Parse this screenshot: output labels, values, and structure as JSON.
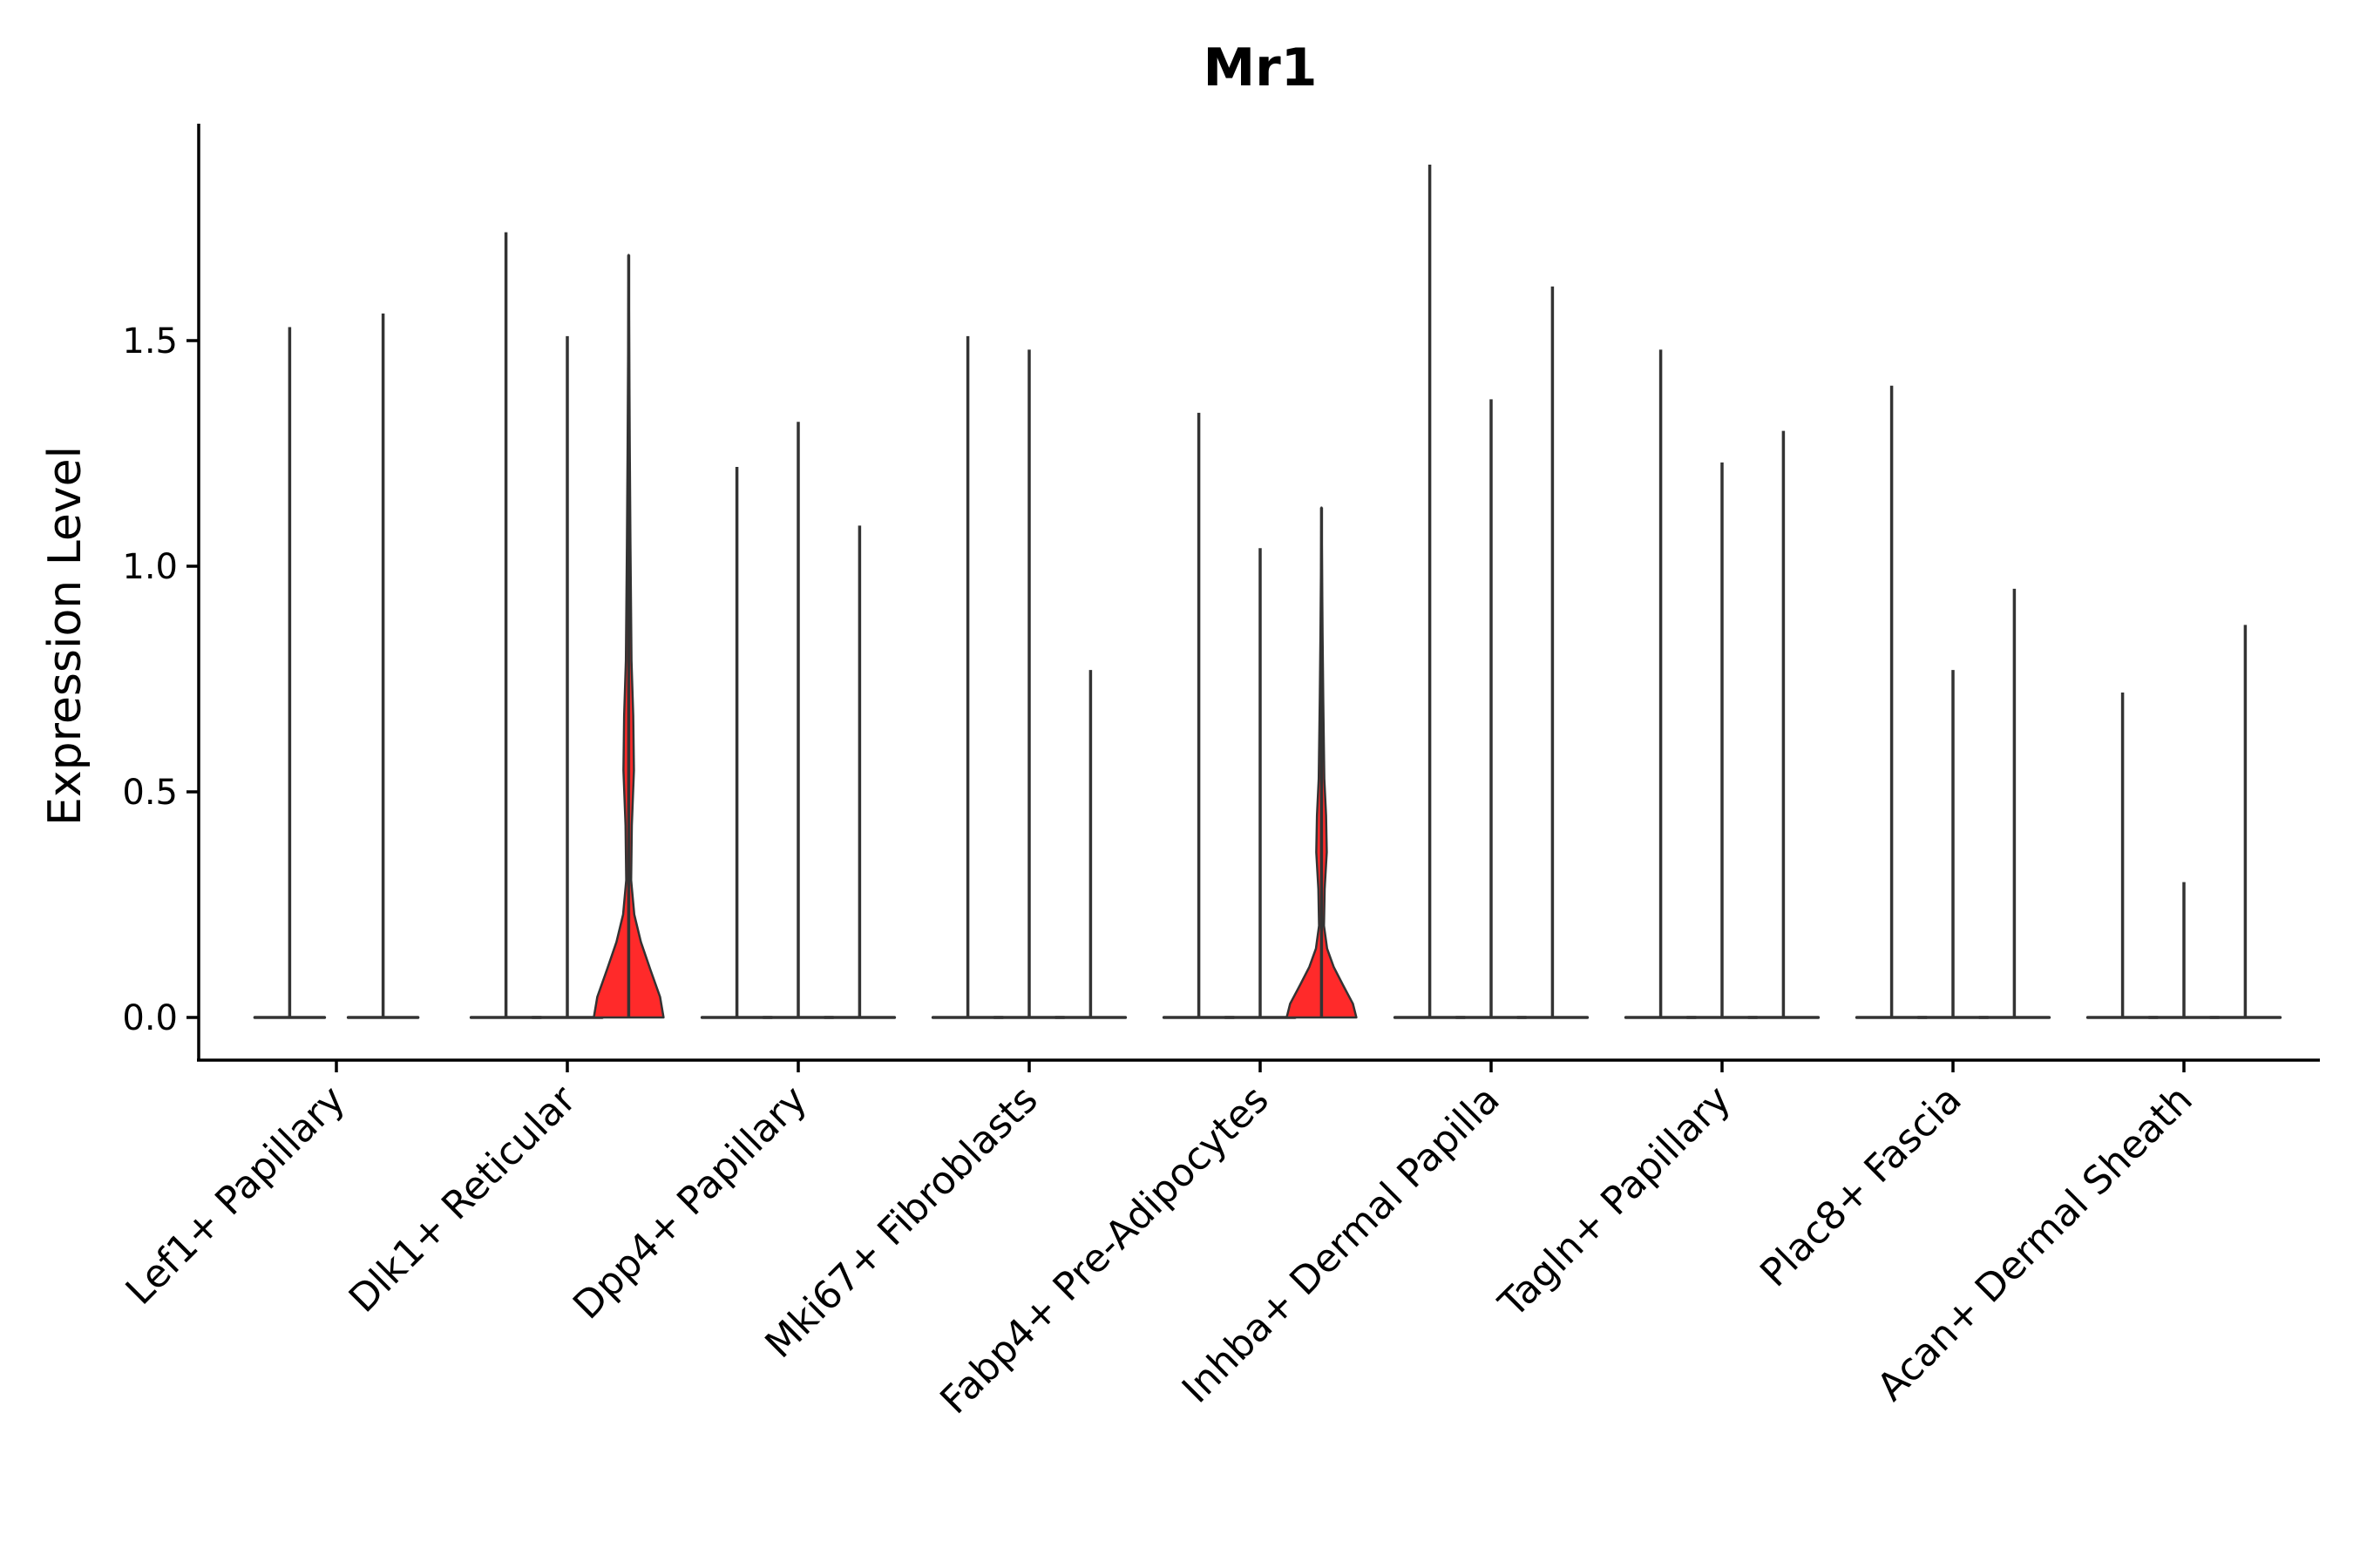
{
  "chart_data": {
    "type": "violin",
    "title": "Mr1",
    "xlabel": "",
    "ylabel": "Expression Level",
    "ylim": [
      -0.095,
      2.0
    ],
    "yticks": [
      0.0,
      0.5,
      1.0,
      1.5
    ],
    "ytick_labels": [
      "0.0",
      "0.5",
      "1.0",
      "1.5"
    ],
    "categories": [
      "Lef1+ Papillary",
      "Dlk1+ Reticular",
      "Dpp4+ Papillary",
      "Mki67+ Fibroblasts",
      "Fabp4+ Pre-Adipocytes",
      "Inhba+ Dermal Papilla",
      "Tagln+ Papillary",
      "Plac8+ Fascia",
      "Acan+ Dermal Sheath"
    ],
    "fill_color": "#ff2a2a",
    "line_color": "#333333",
    "violins": [
      {
        "group": "Lef1+ Papillary",
        "offset": -0.67,
        "max": 1.53,
        "filled": false
      },
      {
        "group": "Lef1+ Papillary",
        "offset": 0.67,
        "max": 1.56,
        "filled": false
      },
      {
        "group": "Dlk1+ Reticular",
        "offset": -0.88,
        "max": 1.74,
        "filled": false
      },
      {
        "group": "Dlk1+ Reticular",
        "offset": 0.0,
        "max": 1.51,
        "filled": false
      },
      {
        "group": "Dlk1+ Reticular",
        "offset": 0.88,
        "max": 1.69,
        "filled": true
      },
      {
        "group": "Dpp4+ Papillary",
        "offset": -0.88,
        "max": 1.22,
        "filled": false
      },
      {
        "group": "Dpp4+ Papillary",
        "offset": 0.0,
        "max": 1.32,
        "filled": false
      },
      {
        "group": "Dpp4+ Papillary",
        "offset": 0.88,
        "max": 1.09,
        "filled": false
      },
      {
        "group": "Mki67+ Fibroblasts",
        "offset": -0.88,
        "max": 1.51,
        "filled": false
      },
      {
        "group": "Mki67+ Fibroblasts",
        "offset": 0.0,
        "max": 1.48,
        "filled": false
      },
      {
        "group": "Mki67+ Fibroblasts",
        "offset": 0.88,
        "max": 0.77,
        "filled": false
      },
      {
        "group": "Fabp4+ Pre-Adipocytes",
        "offset": -0.88,
        "max": 1.34,
        "filled": false
      },
      {
        "group": "Fabp4+ Pre-Adipocytes",
        "offset": 0.0,
        "max": 1.04,
        "filled": false
      },
      {
        "group": "Fabp4+ Pre-Adipocytes",
        "offset": 0.88,
        "max": 1.13,
        "filled": true
      },
      {
        "group": "Inhba+ Dermal Papilla",
        "offset": -0.88,
        "max": 1.89,
        "filled": false
      },
      {
        "group": "Inhba+ Dermal Papilla",
        "offset": 0.0,
        "max": 1.37,
        "filled": false
      },
      {
        "group": "Inhba+ Dermal Papilla",
        "offset": 0.88,
        "max": 1.62,
        "filled": false
      },
      {
        "group": "Tagln+ Papillary",
        "offset": -0.88,
        "max": 1.48,
        "filled": false
      },
      {
        "group": "Tagln+ Papillary",
        "offset": 0.0,
        "max": 1.23,
        "filled": false
      },
      {
        "group": "Tagln+ Papillary",
        "offset": 0.88,
        "max": 1.3,
        "filled": false
      },
      {
        "group": "Plac8+ Fascia",
        "offset": -0.88,
        "max": 1.4,
        "filled": false
      },
      {
        "group": "Plac8+ Fascia",
        "offset": 0.0,
        "max": 0.77,
        "filled": false
      },
      {
        "group": "Plac8+ Fascia",
        "offset": 0.88,
        "max": 0.95,
        "filled": false
      },
      {
        "group": "Acan+ Dermal Sheath",
        "offset": -0.88,
        "max": 0.72,
        "filled": false
      },
      {
        "group": "Acan+ Dermal Sheath",
        "offset": 0.0,
        "max": 0.3,
        "filled": false
      },
      {
        "group": "Acan+ Dermal Sheath",
        "offset": 0.88,
        "max": 0.87,
        "filled": false
      }
    ]
  }
}
